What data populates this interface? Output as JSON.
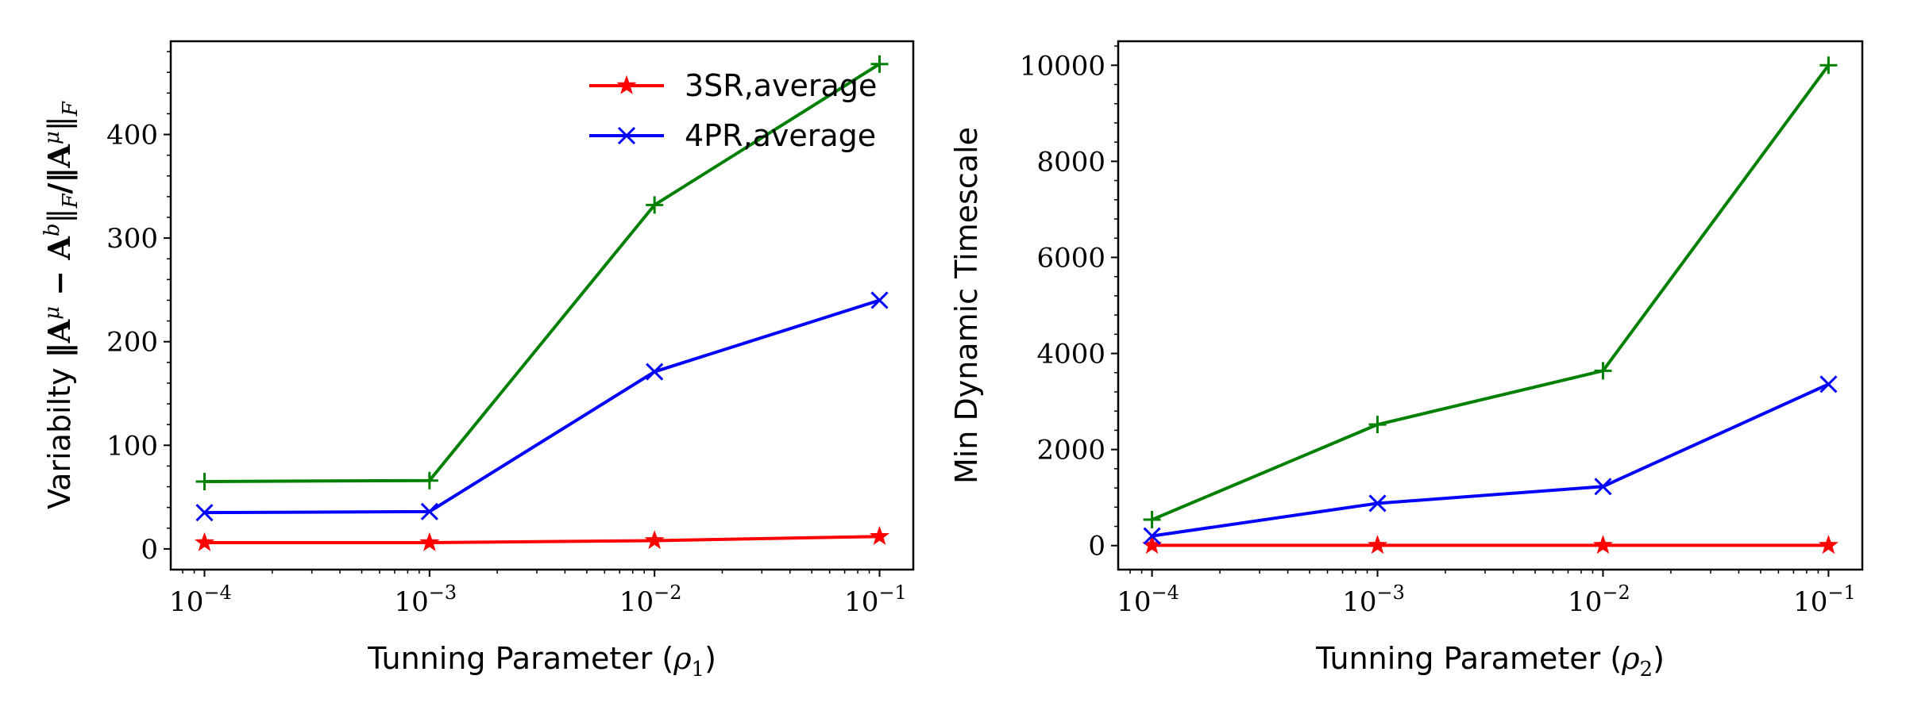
{
  "chart_data": [
    {
      "type": "line",
      "xscale": "log",
      "x": [
        0.0001,
        0.001,
        0.01,
        0.1
      ],
      "x_tick_labels": [
        {
          "base": "10",
          "exp": "−4"
        },
        {
          "base": "10",
          "exp": "−3"
        },
        {
          "base": "10",
          "exp": "−2"
        },
        {
          "base": "10",
          "exp": "−1"
        }
      ],
      "ylim": [
        -20,
        490
      ],
      "yticks": [
        0,
        100,
        200,
        300,
        400
      ],
      "xlabel": {
        "text": "Tunning Parameter (",
        "sym": "ρ",
        "sub": "1",
        "close": ")"
      },
      "ylabel": {
        "text": "Variabilty ",
        "math": "‖A",
        "sup1": "μ",
        "minus": " − A",
        "sup2": "b",
        "mid": "‖",
        "sub1": "F",
        "slash": "/‖A",
        "sup3": "μ",
        "end": "‖",
        "sub2": "F"
      },
      "legend": {
        "placement": "top-right"
      },
      "series": [
        {
          "name": "3SR,average",
          "color": "#ff0000",
          "marker": "star",
          "values": [
            6,
            6,
            8,
            12
          ]
        },
        {
          "name": "4PR,average",
          "color": "#0000ff",
          "marker": "x",
          "values": [
            35,
            36,
            171,
            240
          ]
        },
        {
          "color": "#008000",
          "marker": "plus",
          "values": [
            65,
            66,
            332,
            468
          ]
        }
      ]
    },
    {
      "type": "line",
      "xscale": "log",
      "x": [
        0.0001,
        0.001,
        0.01,
        0.1
      ],
      "x_tick_labels": [
        {
          "base": "10",
          "exp": "−4"
        },
        {
          "base": "10",
          "exp": "−3"
        },
        {
          "base": "10",
          "exp": "−2"
        },
        {
          "base": "10",
          "exp": "−1"
        }
      ],
      "ylim": [
        -500,
        10500
      ],
      "yticks": [
        0,
        2000,
        4000,
        6000,
        8000,
        10000
      ],
      "xlabel": {
        "text": "Tunning Parameter (",
        "sym": "ρ",
        "sub": "2",
        "close": ")"
      },
      "ylabel": {
        "text": "Min Dynamic Timescale"
      },
      "series": [
        {
          "color": "#ff0000",
          "marker": "star",
          "values": [
            5,
            5,
            5,
            5
          ]
        },
        {
          "color": "#0000ff",
          "marker": "x",
          "values": [
            200,
            880,
            1230,
            3360
          ]
        },
        {
          "color": "#008000",
          "marker": "plus",
          "values": [
            540,
            2520,
            3640,
            10000
          ]
        }
      ]
    }
  ]
}
